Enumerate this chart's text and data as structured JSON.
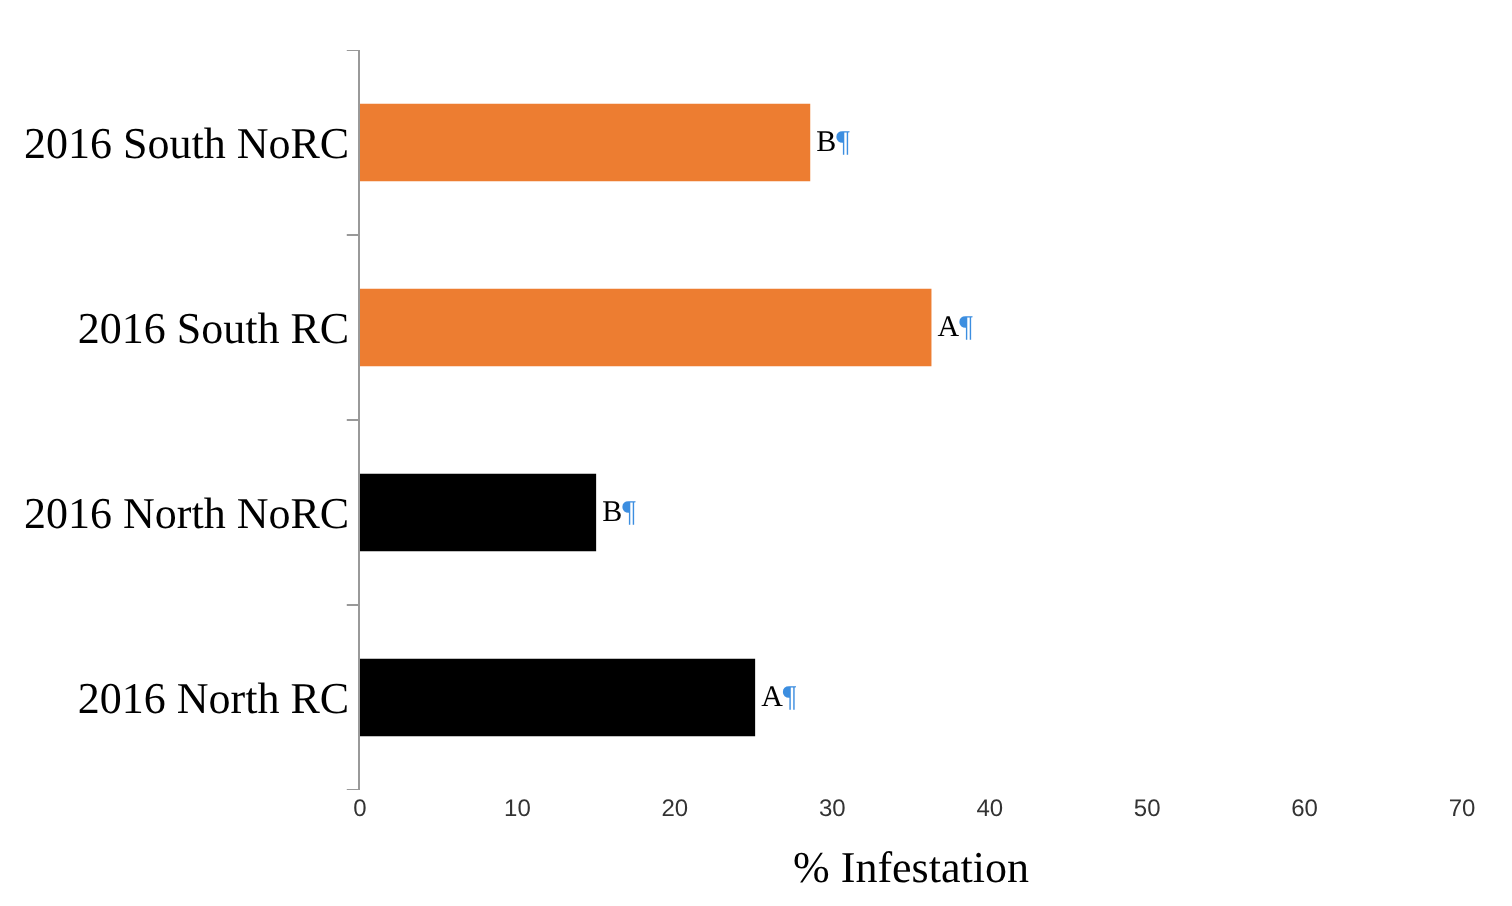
{
  "chart_data": {
    "type": "bar",
    "orientation": "horizontal",
    "xlabel": "% Infestation",
    "categories": [
      "2016 South NoRC",
      "2016 South RC",
      "2016 North NoRC",
      "2016 North RC"
    ],
    "values": [
      28.6,
      36.3,
      15,
      25.1
    ],
    "colors": [
      "#ed7d31",
      "#ed7d31",
      "#000000",
      "#000000"
    ],
    "value_labels": [
      "B¶",
      "A¶",
      "B¶",
      "A¶"
    ],
    "xlim": [
      0,
      70
    ],
    "xticks": [
      0,
      10,
      20,
      30,
      40,
      50,
      60,
      70
    ],
    "legend": false
  }
}
